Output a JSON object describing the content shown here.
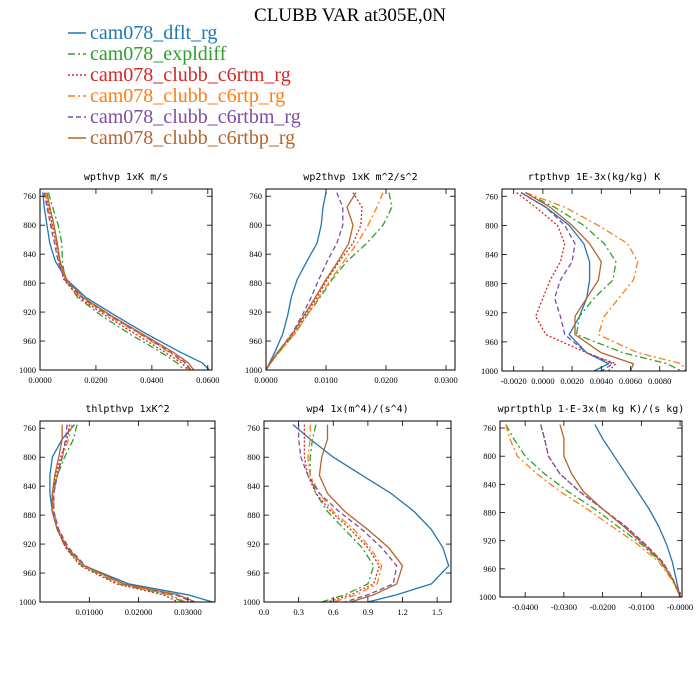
{
  "figure": {
    "title": "CLUBB VAR at305E,0N"
  },
  "legend": [
    {
      "label": "cam078_dflt_rg",
      "color": "#1f77b4",
      "dash": "solid"
    },
    {
      "label": "cam078_expldiff",
      "color": "#2ca02c",
      "dash": "dashdot"
    },
    {
      "label": "cam078_clubb_c6rtm_rg",
      "color": "#d62728",
      "dash": "dotted"
    },
    {
      "label": "cam078_clubb_c6rtp_rg",
      "color": "#ff7f0e",
      "dash": "dashdot"
    },
    {
      "label": "cam078_clubb_c6rtbm_rg",
      "color": "#7b4ea3",
      "dash": "dashed"
    },
    {
      "label": "cam078_clubb_c6rtbp_rg",
      "color": "#b5652c",
      "dash": "solid"
    }
  ],
  "chart_data": [
    {
      "type": "line",
      "title": "wpthvp  1xK m/s",
      "xlim": [
        0,
        0.0615
      ],
      "ylim": [
        1000,
        750
      ],
      "y_ticks": [
        760,
        800,
        840,
        880,
        920,
        960,
        1000
      ],
      "x_ticks": [
        "0.0000",
        "0.0200",
        "0.0400",
        "0.0600"
      ],
      "x_tick_values": [
        0,
        0.02,
        0.04,
        0.06
      ],
      "levels": [
        755,
        775,
        800,
        825,
        850,
        875,
        900,
        925,
        950,
        975,
        990,
        1000
      ],
      "series": [
        {
          "color": "#1f77b4",
          "values": [
            0.001,
            0.0015,
            0.0025,
            0.0035,
            0.0055,
            0.0095,
            0.0165,
            0.027,
            0.038,
            0.05,
            0.058,
            0.0605
          ]
        },
        {
          "color": "#2ca02c",
          "values": [
            0.003,
            0.0045,
            0.0065,
            0.0078,
            0.008,
            0.009,
            0.0135,
            0.022,
            0.032,
            0.043,
            0.049,
            0.0515
          ]
        },
        {
          "color": "#d62728",
          "values": [
            0.002,
            0.003,
            0.0045,
            0.0058,
            0.0068,
            0.0085,
            0.014,
            0.0235,
            0.034,
            0.0445,
            0.0505,
            0.053
          ]
        },
        {
          "color": "#ff7f0e",
          "values": [
            0.002,
            0.0028,
            0.0042,
            0.0058,
            0.007,
            0.009,
            0.0145,
            0.0245,
            0.0355,
            0.046,
            0.0515,
            0.0535
          ]
        },
        {
          "color": "#7b4ea3",
          "values": [
            0.0015,
            0.0025,
            0.0038,
            0.0052,
            0.0065,
            0.0088,
            0.015,
            0.025,
            0.036,
            0.0465,
            0.052,
            0.054
          ]
        },
        {
          "color": "#b5652c",
          "values": [
            0.0025,
            0.0035,
            0.005,
            0.0062,
            0.0072,
            0.0095,
            0.0155,
            0.0255,
            0.0365,
            0.0475,
            0.053,
            0.055
          ]
        }
      ]
    },
    {
      "type": "line",
      "title": "wp2thvp  1xK m^2/s^2",
      "xlim": [
        0,
        0.0315
      ],
      "ylim": [
        1000,
        750
      ],
      "y_ticks": [
        760,
        800,
        840,
        880,
        920,
        960,
        1000
      ],
      "x_ticks": [
        "0.0000",
        "0.0100",
        "0.0200",
        "0.0300"
      ],
      "x_tick_values": [
        0,
        0.01,
        0.02,
        0.03
      ],
      "levels": [
        755,
        775,
        800,
        825,
        850,
        875,
        900,
        925,
        950,
        975,
        990,
        1000
      ],
      "series": [
        {
          "color": "#1f77b4",
          "values": [
            0.01,
            0.0095,
            0.0092,
            0.0085,
            0.0068,
            0.0052,
            0.0042,
            0.0036,
            0.0028,
            0.0015,
            0.0006,
            0
          ]
        },
        {
          "color": "#2ca02c",
          "values": [
            0.0205,
            0.021,
            0.0195,
            0.0168,
            0.0135,
            0.011,
            0.009,
            0.0068,
            0.0048,
            0.0022,
            0.0008,
            0
          ]
        },
        {
          "color": "#d62728",
          "values": [
            0.0145,
            0.016,
            0.0158,
            0.0145,
            0.0122,
            0.0102,
            0.0085,
            0.0065,
            0.0045,
            0.002,
            0.0007,
            0
          ]
        },
        {
          "color": "#ff7f0e",
          "values": [
            0.0195,
            0.0185,
            0.017,
            0.0152,
            0.013,
            0.0108,
            0.0088,
            0.0068,
            0.0048,
            0.0022,
            0.0008,
            0
          ]
        },
        {
          "color": "#7b4ea3",
          "values": [
            0.0118,
            0.0128,
            0.0128,
            0.0118,
            0.0102,
            0.0088,
            0.0075,
            0.006,
            0.0043,
            0.002,
            0.0007,
            0
          ]
        },
        {
          "color": "#b5652c",
          "values": [
            0.015,
            0.0135,
            0.0145,
            0.0138,
            0.012,
            0.01,
            0.0082,
            0.0063,
            0.0044,
            0.002,
            0.0007,
            0
          ]
        }
      ]
    },
    {
      "type": "line",
      "title": "rtpthvp  1E-3x(kg/kg) K",
      "xlim": [
        -0.0028,
        0.0098
      ],
      "ylim": [
        1000,
        750
      ],
      "y_ticks": [
        760,
        800,
        840,
        880,
        920,
        960,
        1000
      ],
      "x_ticks": [
        "-0.0020",
        "0.0000",
        "0.0020",
        "0.0040",
        "0.0060",
        "0.0080"
      ],
      "x_tick_values": [
        -0.002,
        0,
        0.002,
        0.004,
        0.006,
        0.008
      ],
      "levels": [
        755,
        775,
        800,
        825,
        850,
        875,
        900,
        925,
        950,
        975,
        990,
        1000
      ],
      "series": [
        {
          "color": "#1f77b4",
          "values": [
            -0.0015,
            0.0002,
            0.0018,
            0.0028,
            0.0032,
            0.0032,
            0.003,
            0.0025,
            0.0018,
            0.003,
            0.0045,
            0.0035
          ]
        },
        {
          "color": "#2ca02c",
          "values": [
            -0.0012,
            0.0008,
            0.0028,
            0.0042,
            0.005,
            0.0048,
            0.0035,
            0.0025,
            0.0023,
            0.0055,
            0.0085,
            0.0095
          ]
        },
        {
          "color": "#d62728",
          "values": [
            -0.0018,
            -0.0005,
            0.001,
            0.0015,
            0.0012,
            0.0005,
            0,
            -0.0005,
            0.0002,
            0.003,
            0.005,
            0.0045
          ]
        },
        {
          "color": "#ff7f0e",
          "values": [
            -0.0012,
            0.0015,
            0.0038,
            0.0058,
            0.0065,
            0.0062,
            0.0052,
            0.0042,
            0.0038,
            0.0065,
            0.0095,
            0.0098
          ]
        },
        {
          "color": "#7b4ea3",
          "values": [
            -0.0015,
            0.0002,
            0.0015,
            0.0022,
            0.002,
            0.0012,
            0.0008,
            0.0012,
            0.0015,
            0.003,
            0.0048,
            0.004
          ]
        },
        {
          "color": "#b5652c",
          "values": [
            -0.0012,
            0.0005,
            0.002,
            0.0032,
            0.004,
            0.0038,
            0.003,
            0.0022,
            0.0022,
            0.004,
            0.0062,
            0.006
          ]
        }
      ]
    },
    {
      "type": "line",
      "title": "thlpthvp  1xK^2",
      "xlim": [
        0,
        0.0355
      ],
      "ylim": [
        1000,
        750
      ],
      "y_ticks": [
        760,
        800,
        840,
        880,
        920,
        960,
        1000
      ],
      "x_ticks": [
        "0.01000",
        "0.02000",
        "0.03000"
      ],
      "x_tick_values": [
        0.01,
        0.02,
        0.03
      ],
      "levels": [
        755,
        775,
        800,
        825,
        850,
        875,
        900,
        925,
        950,
        975,
        990,
        1000
      ],
      "series": [
        {
          "color": "#1f77b4",
          "values": [
            0.007,
            0.0045,
            0.0025,
            0.002,
            0.002,
            0.0025,
            0.0035,
            0.0055,
            0.009,
            0.018,
            0.03,
            0.035
          ]
        },
        {
          "color": "#2ca02c",
          "values": [
            0.0075,
            0.0068,
            0.005,
            0.0035,
            0.0025,
            0.0025,
            0.0035,
            0.0052,
            0.0085,
            0.016,
            0.026,
            0.029
          ]
        },
        {
          "color": "#d62728",
          "values": [
            0.006,
            0.0055,
            0.0042,
            0.0032,
            0.0025,
            0.0025,
            0.0035,
            0.0052,
            0.0082,
            0.0155,
            0.025,
            0.028
          ]
        },
        {
          "color": "#ff7f0e",
          "values": [
            0.0065,
            0.0058,
            0.0045,
            0.0035,
            0.0028,
            0.0028,
            0.0038,
            0.0055,
            0.0088,
            0.0165,
            0.0265,
            0.0295
          ]
        },
        {
          "color": "#7b4ea3",
          "values": [
            0.0055,
            0.0052,
            0.0045,
            0.0035,
            0.0028,
            0.0028,
            0.0038,
            0.0058,
            0.0092,
            0.017,
            0.0275,
            0.031
          ]
        },
        {
          "color": "#b5652c",
          "values": [
            0.0045,
            0.0045,
            0.0038,
            0.003,
            0.0025,
            0.0025,
            0.0035,
            0.0055,
            0.009,
            0.017,
            0.028,
            0.0315
          ]
        }
      ]
    },
    {
      "type": "line",
      "title": "wp4  1x(m^4)/(s^4)",
      "xlim": [
        0,
        1.62
      ],
      "ylim": [
        1000,
        750
      ],
      "y_ticks": [
        760,
        800,
        840,
        880,
        920,
        960,
        1000
      ],
      "x_ticks": [
        "0.0",
        "0.3",
        "0.6",
        "0.9",
        "1.2",
        "1.5"
      ],
      "x_tick_values": [
        0,
        0.3,
        0.6,
        0.9,
        1.2,
        1.5
      ],
      "levels": [
        755,
        775,
        800,
        825,
        850,
        875,
        900,
        925,
        950,
        975,
        990,
        1000
      ],
      "series": [
        {
          "color": "#1f77b4",
          "values": [
            0.25,
            0.4,
            0.6,
            0.85,
            1.1,
            1.3,
            1.45,
            1.55,
            1.6,
            1.45,
            1.15,
            0.9
          ]
        },
        {
          "color": "#2ca02c",
          "values": [
            0.45,
            0.42,
            0.4,
            0.4,
            0.45,
            0.55,
            0.7,
            0.85,
            0.95,
            0.9,
            0.7,
            0.5
          ]
        },
        {
          "color": "#d62728",
          "values": [
            0.35,
            0.35,
            0.35,
            0.38,
            0.45,
            0.58,
            0.75,
            0.9,
            1.0,
            0.95,
            0.75,
            0.55
          ]
        },
        {
          "color": "#ff7f0e",
          "values": [
            0.4,
            0.4,
            0.38,
            0.4,
            0.48,
            0.6,
            0.78,
            0.92,
            1.02,
            0.98,
            0.8,
            0.6
          ]
        },
        {
          "color": "#7b4ea3",
          "values": [
            0.3,
            0.3,
            0.32,
            0.38,
            0.48,
            0.65,
            0.85,
            1.02,
            1.15,
            1.12,
            0.9,
            0.7
          ]
        },
        {
          "color": "#b5652c",
          "values": [
            0.55,
            0.55,
            0.5,
            0.48,
            0.55,
            0.7,
            0.9,
            1.08,
            1.2,
            1.15,
            0.95,
            0.75
          ]
        }
      ]
    },
    {
      "type": "line",
      "title": "wprtpthlp  1-E-3x(m kg K)/(s kg)",
      "xlim": [
        -0.0465,
        0.0005
      ],
      "ylim": [
        1000,
        750
      ],
      "y_ticks": [
        760,
        800,
        840,
        880,
        920,
        960,
        1000
      ],
      "x_ticks": [
        "-0.0400",
        "-0.0300",
        "-0.0200",
        "-0.0100",
        "-0.0000"
      ],
      "x_tick_values": [
        -0.04,
        -0.03,
        -0.02,
        -0.01,
        0
      ],
      "levels": [
        755,
        775,
        800,
        825,
        850,
        875,
        900,
        925,
        950,
        975,
        990,
        1000
      ],
      "series": [
        {
          "color": "#1f77b4",
          "values": [
            -0.022,
            -0.02,
            -0.017,
            -0.014,
            -0.011,
            -0.008,
            -0.0055,
            -0.0035,
            -0.002,
            -0.001,
            -0.0004,
            0
          ]
        },
        {
          "color": "#2ca02c",
          "values": [
            -0.045,
            -0.043,
            -0.04,
            -0.035,
            -0.029,
            -0.022,
            -0.016,
            -0.01,
            -0.005,
            -0.002,
            -0.0007,
            0
          ]
        },
        {
          "color": "#d62728",
          "values": [
            -0.036,
            -0.035,
            -0.034,
            -0.031,
            -0.026,
            -0.02,
            -0.014,
            -0.009,
            -0.0045,
            -0.0018,
            -0.0006,
            0
          ]
        },
        {
          "color": "#ff7f0e",
          "values": [
            -0.045,
            -0.044,
            -0.042,
            -0.037,
            -0.031,
            -0.024,
            -0.0175,
            -0.011,
            -0.0055,
            -0.0022,
            -0.0008,
            0
          ]
        },
        {
          "color": "#7b4ea3",
          "values": [
            -0.036,
            -0.035,
            -0.034,
            -0.031,
            -0.026,
            -0.02,
            -0.014,
            -0.009,
            -0.0045,
            -0.0018,
            -0.0006,
            0
          ]
        },
        {
          "color": "#b5652c",
          "values": [
            -0.031,
            -0.03,
            -0.03,
            -0.028,
            -0.025,
            -0.02,
            -0.0145,
            -0.0095,
            -0.0048,
            -0.0019,
            -0.0006,
            0
          ]
        }
      ]
    }
  ]
}
